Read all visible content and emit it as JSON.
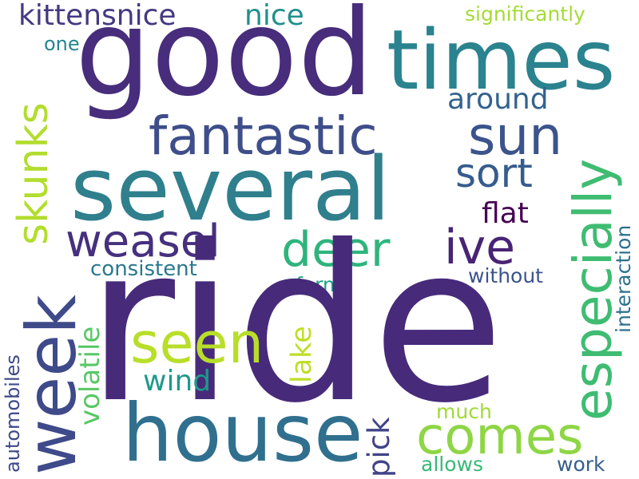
{
  "words": [
    {
      "id": "ride",
      "text": "ride",
      "color": "#472b7a"
    },
    {
      "id": "good",
      "text": "good",
      "color": "#472d7b"
    },
    {
      "id": "several",
      "text": "several",
      "color": "#2f7f8d"
    },
    {
      "id": "times",
      "text": "times",
      "color": "#2a838e"
    },
    {
      "id": "house",
      "text": "house",
      "color": "#30708e"
    },
    {
      "id": "week",
      "text": "week",
      "color": "#3e4a89"
    },
    {
      "id": "fantastic",
      "text": "fantastic",
      "color": "#3e4e8a"
    },
    {
      "id": "especially",
      "text": "especially",
      "color": "#3fbc72"
    },
    {
      "id": "weasel",
      "text": "weasel",
      "color": "#46307e"
    },
    {
      "id": "deer",
      "text": "deer",
      "color": "#2eb47c"
    },
    {
      "id": "sun",
      "text": "sun",
      "color": "#3b548c"
    },
    {
      "id": "ive",
      "text": "ive",
      "color": "#482475"
    },
    {
      "id": "skunks",
      "text": "skunks",
      "color": "#b2dd2d"
    },
    {
      "id": "comes",
      "text": "comes",
      "color": "#8ed645"
    },
    {
      "id": "seen",
      "text": "seen",
      "color": "#b8de29"
    },
    {
      "id": "sort",
      "text": "sort",
      "color": "#365c8d"
    },
    {
      "id": "kittensnice",
      "text": "kittensnice",
      "color": "#453882"
    },
    {
      "id": "nice",
      "text": "nice",
      "color": "#21908d"
    },
    {
      "id": "around",
      "text": "around",
      "color": "#33638d"
    },
    {
      "id": "flat",
      "text": "flat",
      "color": "#440154"
    },
    {
      "id": "significantly",
      "text": "significantly",
      "color": "#a5db36"
    },
    {
      "id": "one",
      "text": "one",
      "color": "#25858e"
    },
    {
      "id": "consistent",
      "text": "consistent",
      "color": "#2a788e"
    },
    {
      "id": "form",
      "text": "form",
      "color": "#20a486"
    },
    {
      "id": "without",
      "text": "without",
      "color": "#3a548c"
    },
    {
      "id": "volatile",
      "text": "volatile",
      "color": "#58c765"
    },
    {
      "id": "lake",
      "text": "lake",
      "color": "#bddf26"
    },
    {
      "id": "wind",
      "text": "wind",
      "color": "#1f998a"
    },
    {
      "id": "interaction",
      "text": "interaction",
      "color": "#2d708e"
    },
    {
      "id": "automobiles",
      "text": "automobiles",
      "color": "#3e4989"
    },
    {
      "id": "pick",
      "text": "pick",
      "color": "#414487"
    },
    {
      "id": "much",
      "text": "much",
      "color": "#a0da39"
    },
    {
      "id": "allows",
      "text": "allows",
      "color": "#38b977"
    },
    {
      "id": "work",
      "text": "work",
      "color": "#355f8d"
    }
  ]
}
